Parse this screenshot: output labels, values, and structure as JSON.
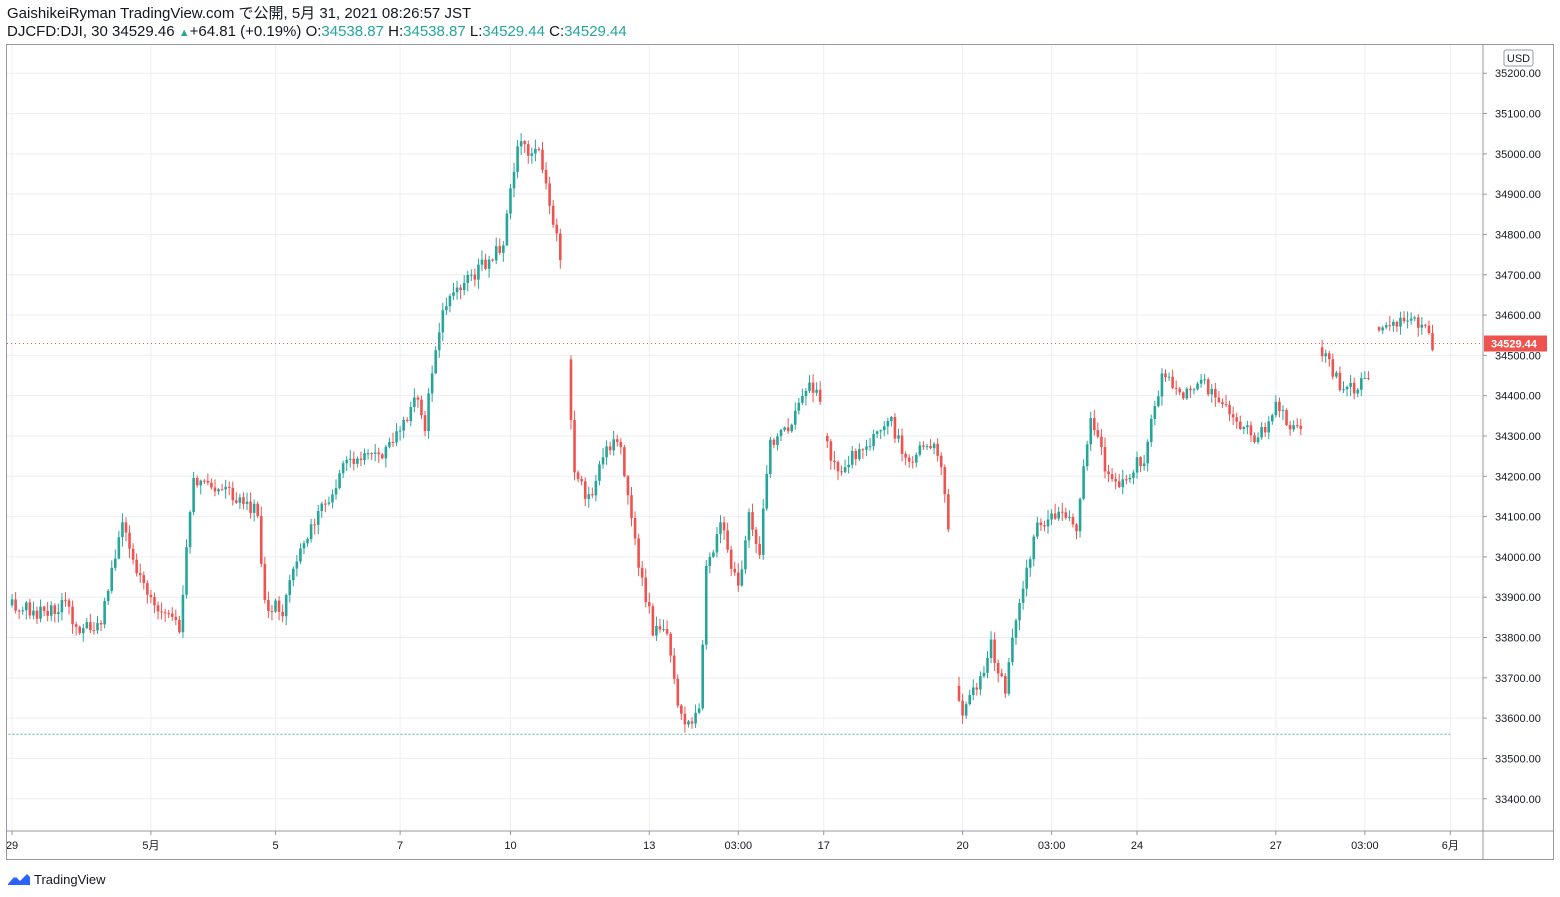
{
  "header": {
    "line1": "GaishikeiRyman TradingView.com で公開, 5月 31, 2021 08:26:57 JST",
    "symbol": "DJCFD:DJI, 30 34529.46",
    "change": "+64.81 (+0.19%)",
    "o_label": "O:",
    "o_value": "34538.87",
    "h_label": "H:",
    "h_value": "34538.87",
    "l_label": "L:",
    "l_value": "34529.44",
    "c_label": "C:",
    "c_value": "34529.44"
  },
  "footer": {
    "brand": "TradingView"
  },
  "colors": {
    "up": "#26a69a",
    "down": "#ef5350",
    "grid": "#eceef2",
    "text": "#131722",
    "last_price": "#ef5350"
  },
  "chart_data": {
    "type": "candlestick",
    "symbol": "DJCFD:DJI",
    "interval": "30",
    "currency": "USD",
    "ylim": [
      33320,
      35270
    ],
    "y_ticks": [
      35200,
      35100,
      35000,
      34900,
      34800,
      34700,
      34600,
      34500,
      34400,
      34300,
      34200,
      34100,
      34000,
      33900,
      33800,
      33700,
      33600,
      33500,
      33400
    ],
    "y_tick_labels": [
      "35200.00",
      "35100.00",
      "35000.00",
      "34900.00",
      "34800.00",
      "34700.00",
      "34600.00",
      "34500.00",
      "34400.00",
      "34300.00",
      "34200.00",
      "34100.00",
      "34000.00",
      "33900.00",
      "33800.00",
      "33700.00",
      "33600.00",
      "33500.00",
      "33400.00"
    ],
    "x_ticks": [
      {
        "label": "29",
        "bar": 1
      },
      {
        "label": "5月",
        "bar": 40
      },
      {
        "label": "5",
        "bar": 75
      },
      {
        "label": "7",
        "bar": 110
      },
      {
        "label": "10",
        "bar": 141
      },
      {
        "label": "13",
        "bar": 180
      },
      {
        "label": "03:00",
        "bar": 205
      },
      {
        "label": "17",
        "bar": 229
      },
      {
        "label": "20",
        "bar": 268
      },
      {
        "label": "03:00",
        "bar": 293
      },
      {
        "label": "24",
        "bar": 317
      },
      {
        "label": "27",
        "bar": 356
      },
      {
        "label": "03:00",
        "bar": 381
      },
      {
        "label": "6月",
        "bar": 405
      }
    ],
    "last_price": 34529.44,
    "last_price_label": "34529.44",
    "reference_level": 33560,
    "segments": [
      {
        "start_bar": 0,
        "start": 33880,
        "waypoints": [
          [
            10,
            33860
          ],
          [
            16,
            33890
          ],
          [
            19,
            33820
          ],
          [
            26,
            33840
          ],
          [
            32,
            34080
          ],
          [
            38,
            33920
          ],
          [
            42,
            33860
          ],
          [
            48,
            33830
          ],
          [
            52,
            34190
          ],
          [
            62,
            34160
          ],
          [
            70,
            34110
          ],
          [
            72,
            33880
          ],
          [
            77,
            33870
          ],
          [
            82,
            34020
          ],
          [
            86,
            34080
          ],
          [
            95,
            34240
          ],
          [
            104,
            34250
          ],
          [
            110,
            34320
          ],
          [
            115,
            34400
          ],
          [
            117,
            34330
          ],
          [
            122,
            34620
          ],
          [
            131,
            34700
          ],
          [
            139,
            34780
          ],
          [
            143,
            35020
          ],
          [
            149,
            35000
          ],
          [
            152,
            34880
          ],
          [
            155,
            34740
          ]
        ]
      },
      {
        "start_bar": 157,
        "start": 34490,
        "waypoints": [
          [
            159,
            34210
          ],
          [
            163,
            34140
          ],
          [
            168,
            34290
          ],
          [
            172,
            34260
          ],
          [
            177,
            33990
          ],
          [
            181,
            33820
          ],
          [
            185,
            33800
          ],
          [
            188,
            33630
          ],
          [
            191,
            33580
          ],
          [
            194,
            33620
          ],
          [
            196,
            33960
          ],
          [
            200,
            34080
          ],
          [
            205,
            33920
          ],
          [
            208,
            34100
          ],
          [
            211,
            34020
          ],
          [
            214,
            34290
          ],
          [
            219,
            34310
          ],
          [
            225,
            34430
          ],
          [
            228,
            34390
          ]
        ]
      },
      {
        "start_bar": 229,
        "start": 34300,
        "waypoints": [
          [
            233,
            34200
          ],
          [
            238,
            34260
          ],
          [
            243,
            34300
          ],
          [
            248,
            34330
          ],
          [
            253,
            34220
          ],
          [
            258,
            34290
          ],
          [
            262,
            34240
          ],
          [
            264,
            34070
          ]
        ]
      },
      {
        "start_bar": 266,
        "start": 33680,
        "waypoints": [
          [
            268,
            33600
          ],
          [
            272,
            33680
          ],
          [
            276,
            33780
          ],
          [
            280,
            33670
          ],
          [
            284,
            33900
          ],
          [
            289,
            34070
          ],
          [
            293,
            34100
          ],
          [
            298,
            34110
          ],
          [
            300,
            34080
          ],
          [
            304,
            34360
          ],
          [
            308,
            34220
          ],
          [
            312,
            34180
          ],
          [
            316,
            34220
          ],
          [
            319,
            34250
          ],
          [
            324,
            34440
          ],
          [
            330,
            34410
          ],
          [
            335,
            34440
          ],
          [
            340,
            34380
          ],
          [
            345,
            34330
          ],
          [
            351,
            34290
          ],
          [
            356,
            34380
          ],
          [
            361,
            34310
          ],
          [
            363,
            34320
          ]
        ]
      },
      {
        "start_bar": 368,
        "start": 34520,
        "waypoints": [
          [
            374,
            34430
          ],
          [
            379,
            34420
          ],
          [
            382,
            34450
          ]
        ]
      },
      {
        "start_bar": 384,
        "start": 34570,
        "waypoints": [
          [
            388,
            34580
          ],
          [
            393,
            34580
          ],
          [
            397,
            34580
          ],
          [
            400,
            34530
          ]
        ]
      }
    ]
  }
}
